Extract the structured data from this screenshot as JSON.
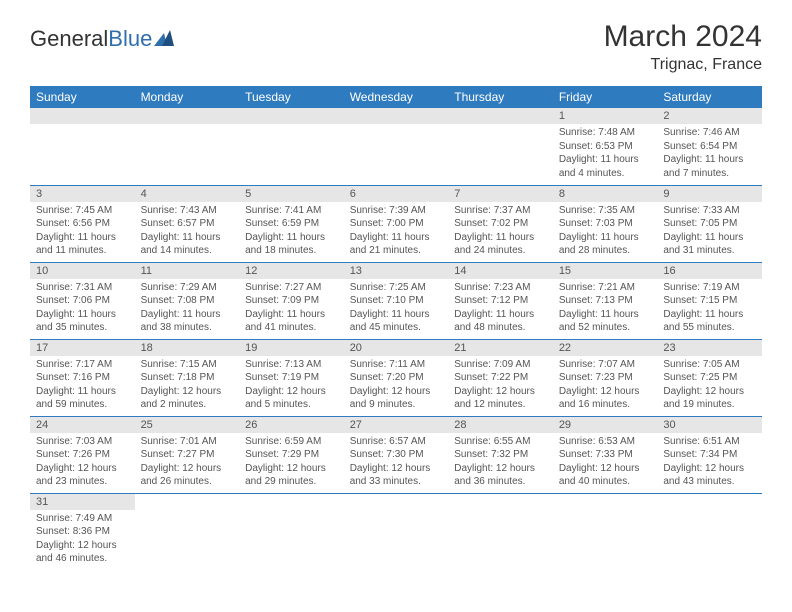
{
  "logo": {
    "general": "General",
    "blue": "Blue"
  },
  "title": "March 2024",
  "location": "Trignac, France",
  "colors": {
    "header_bg": "#2f7bbf",
    "header_text": "#ffffff",
    "daynum_bg": "#e6e6e6",
    "text": "#555555",
    "border": "#2f7bbf",
    "logo_blue": "#2f6fad"
  },
  "daysOfWeek": [
    "Sunday",
    "Monday",
    "Tuesday",
    "Wednesday",
    "Thursday",
    "Friday",
    "Saturday"
  ],
  "weeks": [
    [
      null,
      null,
      null,
      null,
      null,
      {
        "n": "1",
        "sr": "7:48 AM",
        "ss": "6:53 PM",
        "dl": "11 hours and 4 minutes."
      },
      {
        "n": "2",
        "sr": "7:46 AM",
        "ss": "6:54 PM",
        "dl": "11 hours and 7 minutes."
      }
    ],
    [
      {
        "n": "3",
        "sr": "7:45 AM",
        "ss": "6:56 PM",
        "dl": "11 hours and 11 minutes."
      },
      {
        "n": "4",
        "sr": "7:43 AM",
        "ss": "6:57 PM",
        "dl": "11 hours and 14 minutes."
      },
      {
        "n": "5",
        "sr": "7:41 AM",
        "ss": "6:59 PM",
        "dl": "11 hours and 18 minutes."
      },
      {
        "n": "6",
        "sr": "7:39 AM",
        "ss": "7:00 PM",
        "dl": "11 hours and 21 minutes."
      },
      {
        "n": "7",
        "sr": "7:37 AM",
        "ss": "7:02 PM",
        "dl": "11 hours and 24 minutes."
      },
      {
        "n": "8",
        "sr": "7:35 AM",
        "ss": "7:03 PM",
        "dl": "11 hours and 28 minutes."
      },
      {
        "n": "9",
        "sr": "7:33 AM",
        "ss": "7:05 PM",
        "dl": "11 hours and 31 minutes."
      }
    ],
    [
      {
        "n": "10",
        "sr": "7:31 AM",
        "ss": "7:06 PM",
        "dl": "11 hours and 35 minutes."
      },
      {
        "n": "11",
        "sr": "7:29 AM",
        "ss": "7:08 PM",
        "dl": "11 hours and 38 minutes."
      },
      {
        "n": "12",
        "sr": "7:27 AM",
        "ss": "7:09 PM",
        "dl": "11 hours and 41 minutes."
      },
      {
        "n": "13",
        "sr": "7:25 AM",
        "ss": "7:10 PM",
        "dl": "11 hours and 45 minutes."
      },
      {
        "n": "14",
        "sr": "7:23 AM",
        "ss": "7:12 PM",
        "dl": "11 hours and 48 minutes."
      },
      {
        "n": "15",
        "sr": "7:21 AM",
        "ss": "7:13 PM",
        "dl": "11 hours and 52 minutes."
      },
      {
        "n": "16",
        "sr": "7:19 AM",
        "ss": "7:15 PM",
        "dl": "11 hours and 55 minutes."
      }
    ],
    [
      {
        "n": "17",
        "sr": "7:17 AM",
        "ss": "7:16 PM",
        "dl": "11 hours and 59 minutes."
      },
      {
        "n": "18",
        "sr": "7:15 AM",
        "ss": "7:18 PM",
        "dl": "12 hours and 2 minutes."
      },
      {
        "n": "19",
        "sr": "7:13 AM",
        "ss": "7:19 PM",
        "dl": "12 hours and 5 minutes."
      },
      {
        "n": "20",
        "sr": "7:11 AM",
        "ss": "7:20 PM",
        "dl": "12 hours and 9 minutes."
      },
      {
        "n": "21",
        "sr": "7:09 AM",
        "ss": "7:22 PM",
        "dl": "12 hours and 12 minutes."
      },
      {
        "n": "22",
        "sr": "7:07 AM",
        "ss": "7:23 PM",
        "dl": "12 hours and 16 minutes."
      },
      {
        "n": "23",
        "sr": "7:05 AM",
        "ss": "7:25 PM",
        "dl": "12 hours and 19 minutes."
      }
    ],
    [
      {
        "n": "24",
        "sr": "7:03 AM",
        "ss": "7:26 PM",
        "dl": "12 hours and 23 minutes."
      },
      {
        "n": "25",
        "sr": "7:01 AM",
        "ss": "7:27 PM",
        "dl": "12 hours and 26 minutes."
      },
      {
        "n": "26",
        "sr": "6:59 AM",
        "ss": "7:29 PM",
        "dl": "12 hours and 29 minutes."
      },
      {
        "n": "27",
        "sr": "6:57 AM",
        "ss": "7:30 PM",
        "dl": "12 hours and 33 minutes."
      },
      {
        "n": "28",
        "sr": "6:55 AM",
        "ss": "7:32 PM",
        "dl": "12 hours and 36 minutes."
      },
      {
        "n": "29",
        "sr": "6:53 AM",
        "ss": "7:33 PM",
        "dl": "12 hours and 40 minutes."
      },
      {
        "n": "30",
        "sr": "6:51 AM",
        "ss": "7:34 PM",
        "dl": "12 hours and 43 minutes."
      }
    ],
    [
      {
        "n": "31",
        "sr": "7:49 AM",
        "ss": "8:36 PM",
        "dl": "12 hours and 46 minutes."
      },
      null,
      null,
      null,
      null,
      null,
      null
    ]
  ],
  "labels": {
    "sunrise": "Sunrise: ",
    "sunset": "Sunset: ",
    "daylight": "Daylight: "
  }
}
